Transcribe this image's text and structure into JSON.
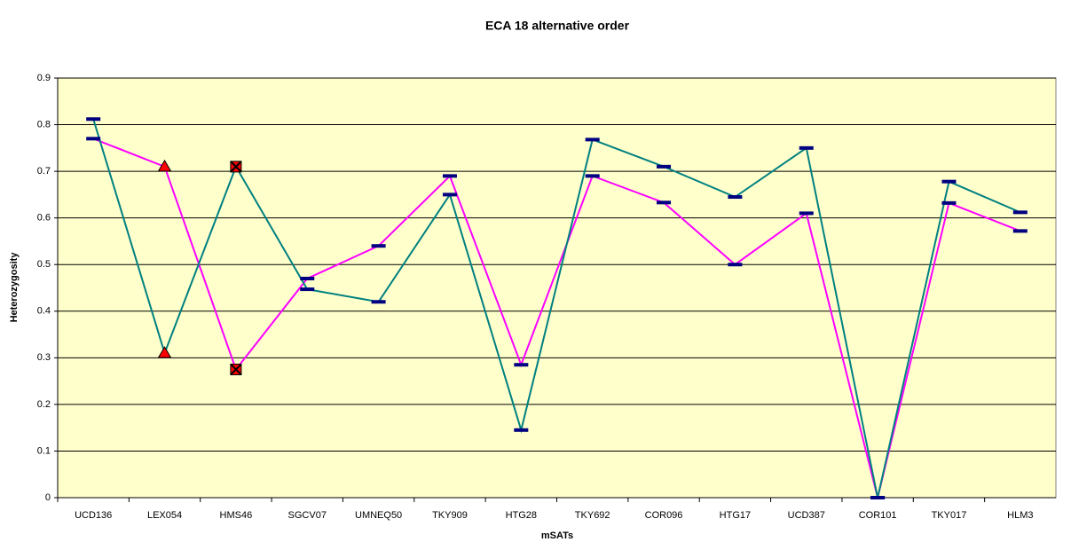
{
  "chart_data": {
    "type": "line",
    "title": "ECA 18 alternative order",
    "x_label": "mSATs",
    "y_label": "Heterozygosity",
    "categories": [
      "UCD136",
      "LEX054",
      "HMS46",
      "SGCV07",
      "UMNEQ50",
      "TKY909",
      "HTG28",
      "TKY692",
      "COR096",
      "HTG17",
      "UCD387",
      "COR101",
      "TKY017",
      "HLM3"
    ],
    "series": [
      {
        "color": "#ff00ff",
        "values": [
          0.77,
          0.71,
          0.275,
          0.47,
          0.54,
          0.69,
          0.285,
          0.69,
          0.633,
          0.5,
          0.61,
          0,
          0.632,
          0.572
        ]
      },
      {
        "color": "#008080",
        "values": [
          0.812,
          0.31,
          0.71,
          0.447,
          0.42,
          0.65,
          0.145,
          0.768,
          0.71,
          0.645,
          0.75,
          0,
          0.678,
          0.612
        ]
      }
    ],
    "markers": [
      "dash",
      "triangle",
      "square-x",
      "dash",
      "dash",
      "dash",
      "dash",
      "dash",
      "dash",
      "dash",
      "dash",
      "dash",
      "dash",
      "dash"
    ],
    "marker_color": "#000080",
    "highlight_color": "#ff0000",
    "plot_background": "#ffffcc",
    "ylim": [
      0,
      0.9
    ],
    "yticks": [
      0,
      0.1,
      0.2,
      0.3,
      0.4,
      0.5,
      0.6,
      0.7,
      0.8,
      0.9
    ],
    "grid": true
  }
}
